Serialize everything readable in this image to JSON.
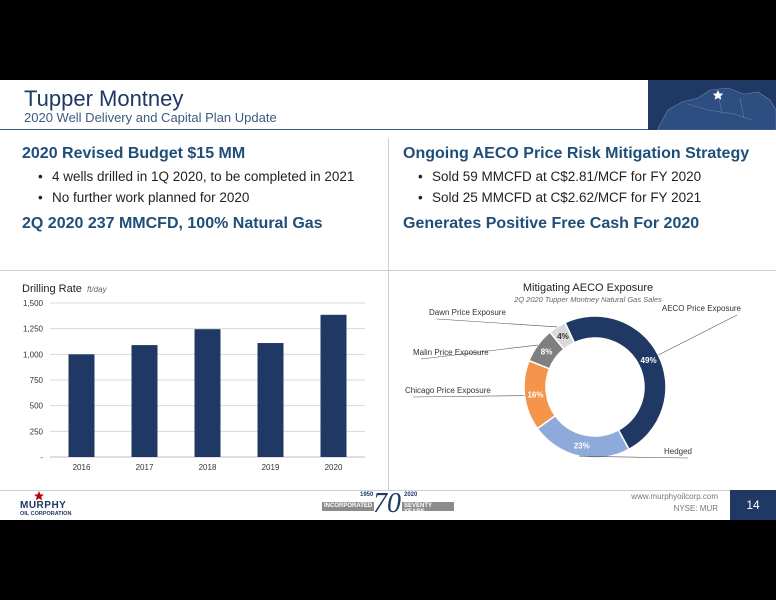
{
  "header": {
    "title": "Tupper Montney",
    "subtitle": "2020 Well Delivery and Capital Plan Update"
  },
  "left_panel": {
    "heading1": "2020 Revised Budget $15 MM",
    "bullets": [
      "4 wells drilled in 1Q 2020, to be completed in 2021",
      "No further work planned for 2020"
    ],
    "heading2": "2Q 2020 237 MMCFD, 100% Natural Gas"
  },
  "right_panel": {
    "heading1": "Ongoing AECO Price Risk Mitigation Strategy",
    "bullets": [
      "Sold 59 MMCFD at C$2.81/MCF for FY 2020",
      "Sold 25 MMCFD at C$2.62/MCF for FY 2021"
    ],
    "heading2": "Generates Positive Free Cash For 2020"
  },
  "chart_data": [
    {
      "type": "bar",
      "title": "Drilling Rate",
      "ylabel": "ft/day",
      "categories": [
        "2016",
        "2017",
        "2018",
        "2019",
        "2020"
      ],
      "values": [
        1000,
        1090,
        1245,
        1110,
        1385
      ],
      "ylim": [
        0,
        1500
      ],
      "yticks": [
        0,
        250,
        500,
        750,
        1000,
        1250,
        1500
      ],
      "ytick_labels": [
        "-",
        "250",
        "500",
        "750",
        "1,000",
        "1,250",
        "1,500"
      ],
      "grid": true,
      "colors": {
        "bar": "#1f3864",
        "grid": "#d9d9d9"
      }
    },
    {
      "type": "pie",
      "title": "Mitigating AECO Exposure",
      "subtitle": "2Q 2020 Tupper Montney Natural Gas Sales",
      "slices": [
        {
          "label": "AECO Price Exposure",
          "value": 49,
          "text": "49%",
          "color": "#1f3864"
        },
        {
          "label": "Hedged",
          "value": 23,
          "text": "23%",
          "color": "#8eaadb"
        },
        {
          "label": "Chicago Price Exposure",
          "value": 16,
          "text": "16%",
          "color": "#f4954b"
        },
        {
          "label": "Malin Price Exposure",
          "value": 8,
          "text": "8%",
          "color": "#7f7f7f"
        },
        {
          "label": "Dawn Price Exposure",
          "value": 4,
          "text": "4%",
          "color": "#d9d9d9"
        }
      ]
    }
  ],
  "footer": {
    "logo_text": "MURPHY",
    "logo_sub": "OIL CORPORATION",
    "anniv_left_year": "1950",
    "anniv_left_word": "INCORPORATED",
    "anniv_number": "70",
    "anniv_right_year": "2020",
    "anniv_right_word": "SEVENTY YEARS",
    "url": "www.murphyoilcorp.com",
    "nyse": "NYSE: MUR",
    "page": "14"
  }
}
